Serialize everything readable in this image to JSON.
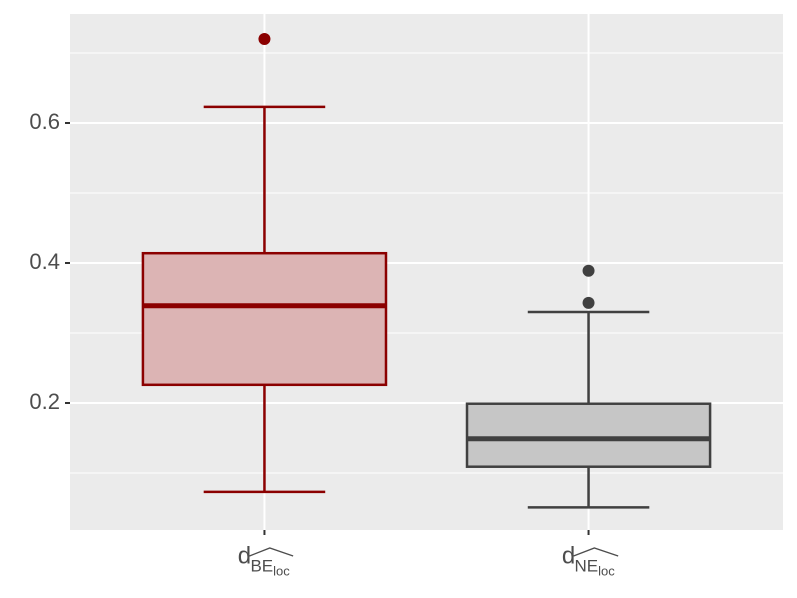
{
  "chart_data": {
    "type": "box",
    "categories": [
      {
        "base": "d",
        "hat": "BE",
        "sub": "loc"
      },
      {
        "base": "d",
        "hat": "NE",
        "sub": "loc"
      }
    ],
    "boxes": [
      {
        "min": 0.073,
        "q1": 0.226,
        "median": 0.339,
        "q3": 0.414,
        "max": 0.623,
        "outliers": [
          0.72
        ],
        "color": "#8b0000",
        "fill": "#dcb4b4"
      },
      {
        "min": 0.051,
        "q1": 0.109,
        "median": 0.149,
        "q3": 0.199,
        "max": 0.33,
        "outliers": [
          0.389,
          0.343
        ],
        "color": "#404040",
        "fill": "#c6c6c6"
      }
    ],
    "ylim": [
      0.0186,
      0.7557
    ],
    "yticks": [
      0.2,
      0.4,
      0.6
    ],
    "minor_yticks": [
      0.1,
      0.3,
      0.5,
      0.7
    ],
    "grid": true
  }
}
